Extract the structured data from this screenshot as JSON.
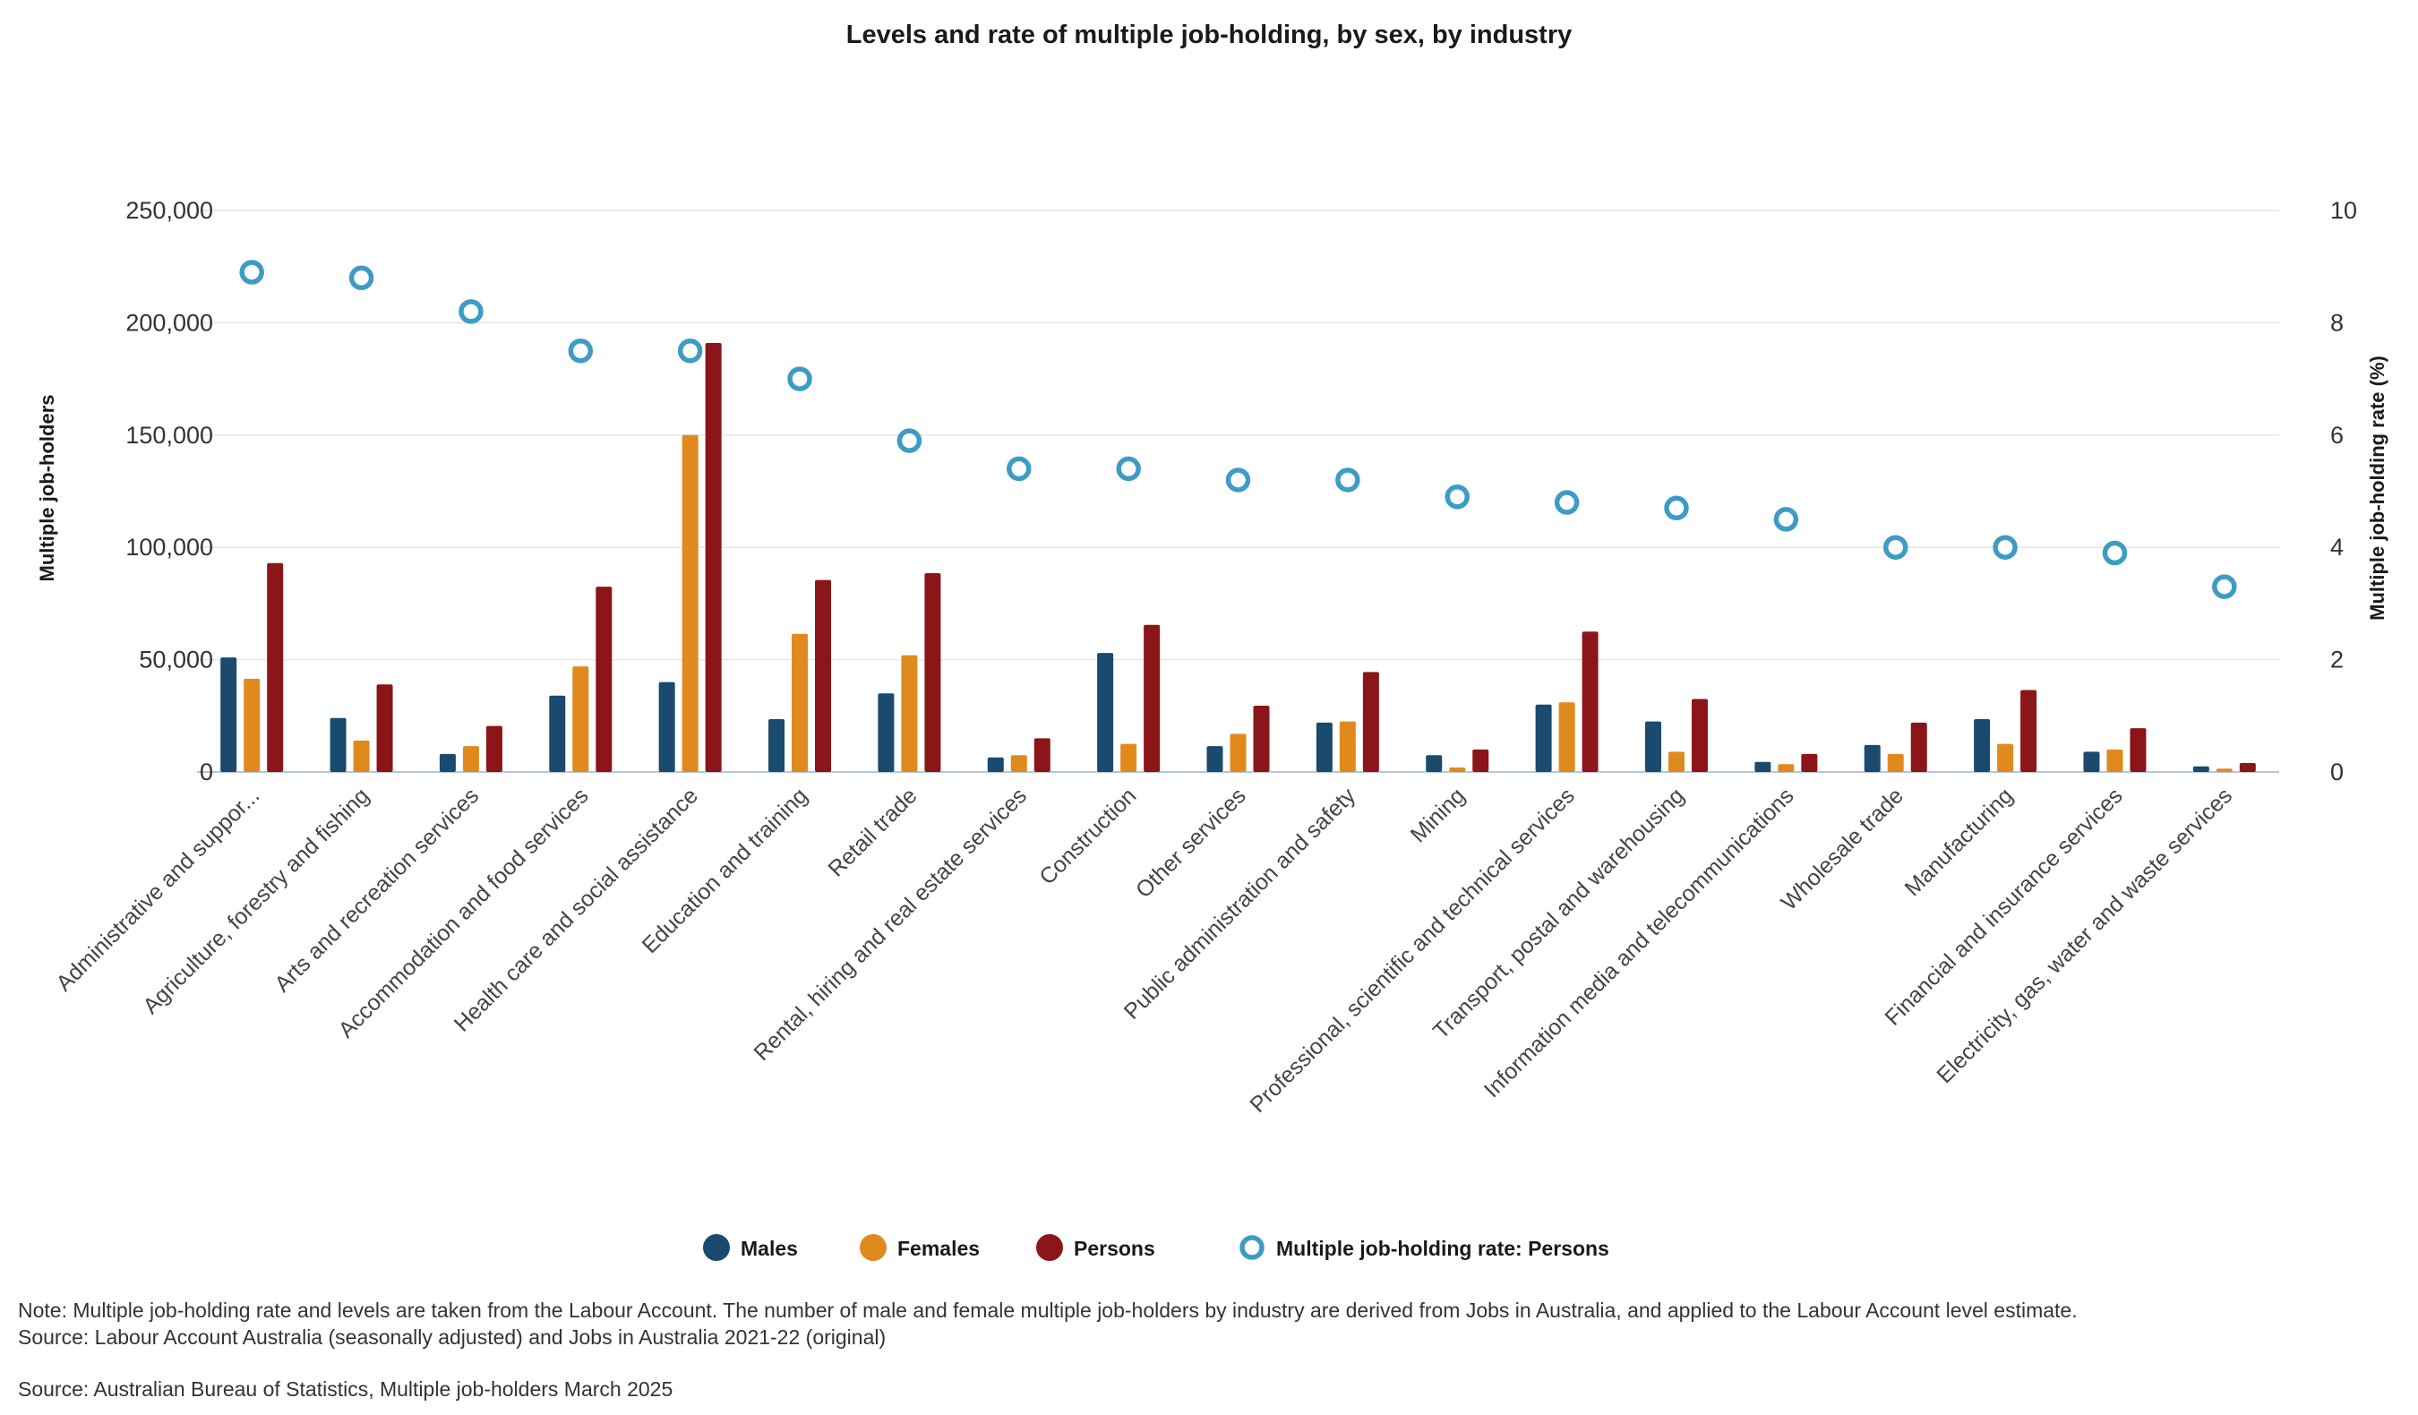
{
  "chart_data": {
    "type": "bar",
    "title": "Levels and rate of multiple job-holding, by sex, by industry",
    "ylabel": "Multiple job-holders",
    "y2label": "Multiple job-holding rate (%)",
    "ylim": [
      0,
      250000
    ],
    "y_ticks": [
      "250,000",
      "200,000",
      "150,000",
      "100,000",
      "50,000",
      "0"
    ],
    "y2lim": [
      0,
      10
    ],
    "y2_ticks": [
      "10",
      "8",
      "6",
      "4",
      "2",
      "0"
    ],
    "grid": true,
    "legend_position": "bottom",
    "categories": [
      "Administrative and suppor...",
      "Agriculture, forestry and fishing",
      "Arts and recreation services",
      "Accommodation and food services",
      "Health care and social assistance",
      "Education and training",
      "Retail trade",
      "Rental, hiring and real estate services",
      "Construction",
      "Other services",
      "Public administration and safety",
      "Mining",
      "Professional, scientific and technical services",
      "Transport, postal and warehousing",
      "Information media and telecommunications",
      "Wholesale trade",
      "Manufacturing",
      "Financial and insurance services",
      "Electricity, gas, water and waste services"
    ],
    "series": [
      {
        "name": "Males",
        "type": "bar",
        "color": "#1a4a6e",
        "axis": "left",
        "values": [
          51000,
          24000,
          8000,
          34000,
          40000,
          23500,
          35000,
          6500,
          53000,
          11500,
          22000,
          7500,
          30000,
          22500,
          4500,
          12000,
          23500,
          9000,
          2500
        ]
      },
      {
        "name": "Females",
        "type": "bar",
        "color": "#e08a1e",
        "axis": "left",
        "values": [
          41500,
          14000,
          11500,
          47000,
          150000,
          61500,
          52000,
          7500,
          12500,
          17000,
          22500,
          2000,
          31000,
          9000,
          3500,
          8000,
          12500,
          10000,
          1500
        ]
      },
      {
        "name": "Persons",
        "type": "bar",
        "color": "#8b1518",
        "axis": "left",
        "values": [
          93000,
          39000,
          20500,
          82500,
          191000,
          85500,
          88500,
          15000,
          65500,
          29500,
          44500,
          10000,
          62500,
          32500,
          8000,
          22000,
          36500,
          19500,
          4000
        ]
      },
      {
        "name": "Multiple job-holding rate: Persons",
        "type": "scatter",
        "color": "#3d9cc6",
        "axis": "right",
        "values": [
          8.9,
          8.8,
          8.2,
          7.5,
          7.5,
          7.0,
          5.9,
          5.4,
          5.4,
          5.2,
          5.2,
          4.9,
          4.8,
          4.7,
          4.5,
          4.0,
          4.0,
          3.9,
          3.3
        ]
      }
    ]
  },
  "notes": {
    "line1": "Note: Multiple job-holding rate and levels are taken from the Labour Account. The number of male and female multiple job-holders by industry are derived from Jobs in Australia, and applied to the Labour Account level estimate.",
    "line2": "Source: Labour Account Australia (seasonally adjusted) and Jobs in Australia 2021-22 (original)",
    "source": "Source: Australian Bureau of Statistics, Multiple job-holders March 2025"
  }
}
